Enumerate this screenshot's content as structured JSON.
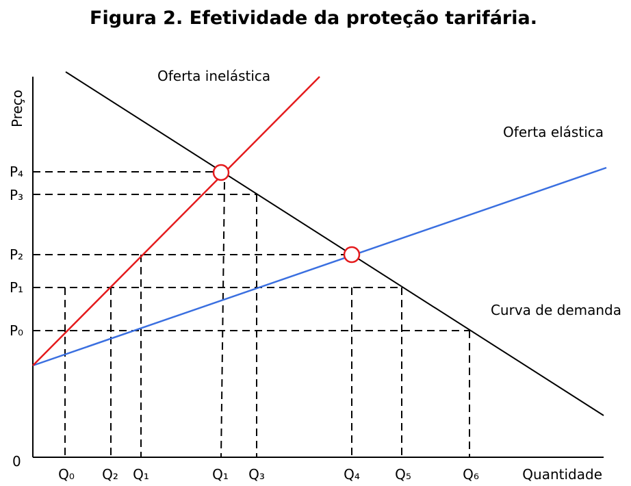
{
  "title": "Figura 2. Efetividade da proteção tarifária.",
  "axes": {
    "y_label": "Preço",
    "x_label": "Quantidade",
    "origin": "0"
  },
  "prices": [
    "P4",
    "P3",
    "P2",
    "P1",
    "P0"
  ],
  "quantities": [
    "Q0",
    "Q2",
    "Q1",
    "Q1",
    "Q3",
    "Q4",
    "Q5",
    "Q6"
  ],
  "curves": {
    "inelastic_supply": "Oferta inelástica",
    "elastic_supply": "Oferta elástica",
    "demand": "Curva de demanda"
  },
  "colors": {
    "inelastic_supply": "#e41a1c",
    "elastic_supply": "#3a6fe0",
    "demand": "#000000",
    "equilibrium_marker": "#e41a1c"
  }
}
